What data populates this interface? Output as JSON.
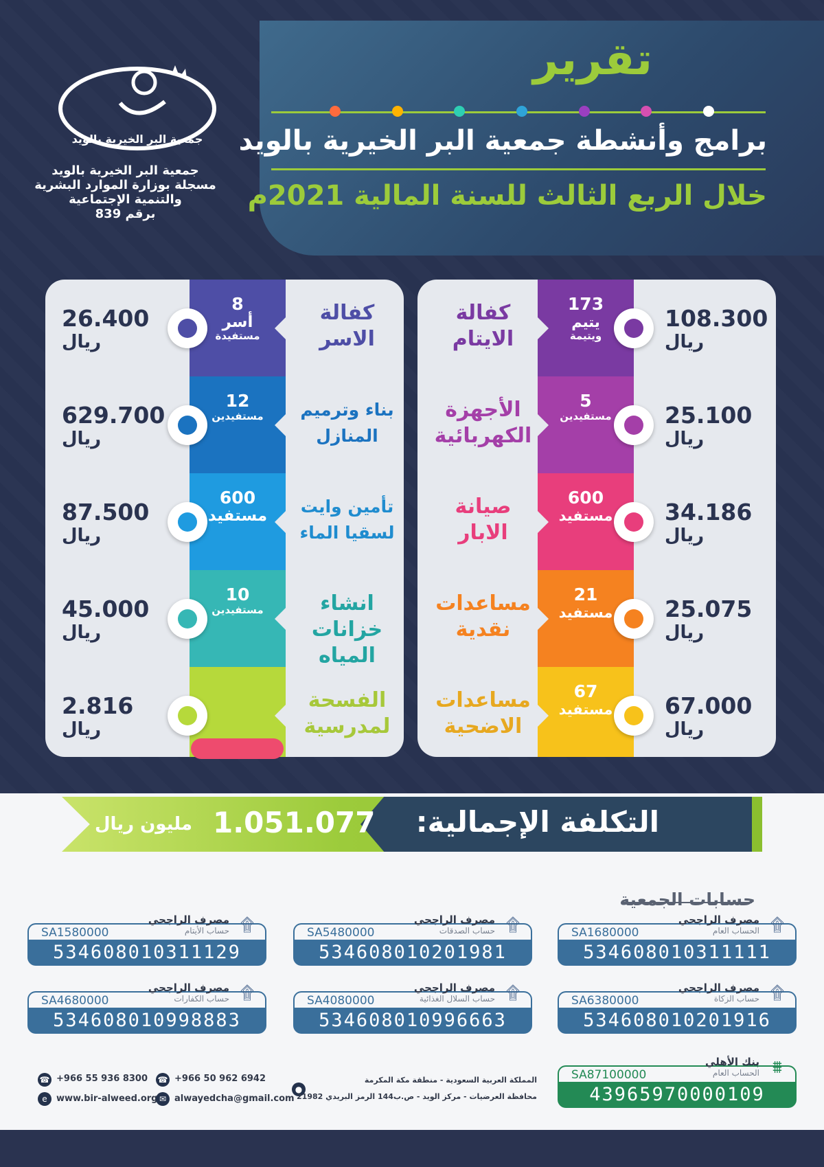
{
  "header": {
    "title": "تقرير",
    "subtitle": "برامج وأنشطة جمعية البر الخيرية بالويد",
    "period": "خلال الربع الثالث للسنة المالية 2021م",
    "dot_colors": [
      "#ff6b3d",
      "#ffb300",
      "#2ecfb3",
      "#2fa4d8",
      "#9b3fc0",
      "#d64fb0",
      "#ffffff"
    ]
  },
  "organization": {
    "logo_text": "جمعية البر الخيرية بالويد",
    "lines": [
      "جمعية البر الخيرية بالويد",
      "مسجلة بوزارة الموارد البشرية",
      "والتنمية الإجتماعية",
      "برقم 839"
    ]
  },
  "programs_right": [
    {
      "label1": "كفالة",
      "label2": "الايتام",
      "count": "173",
      "unit1": "يتيم",
      "unit2": "ويتيمة",
      "amount": "108.300",
      "currency": "ريال",
      "color": "#7a3aa2",
      "label_color": "#7a3aa2"
    },
    {
      "label1": "الأجهزة",
      "label2": "الكهربائية",
      "count": "5",
      "unit1": "",
      "unit2": "مستفيدين",
      "amount": "25.100",
      "currency": "ريال",
      "color": "#a43fa8",
      "label_color": "#a43fa8"
    },
    {
      "label1": "صيانة",
      "label2": "الابار",
      "count": "600",
      "unit1": "مستفيد",
      "unit2": "",
      "amount": "34.186",
      "currency": "ريال",
      "color": "#e83e7c",
      "label_color": "#e83e7c"
    },
    {
      "label1": "مساعدات",
      "label2": "نقدية",
      "count": "21",
      "unit1": "مستفيد",
      "unit2": "",
      "amount": "25.075",
      "currency": "ريال",
      "color": "#f58220",
      "label_color": "#f58220"
    },
    {
      "label1": "مساعدات",
      "label2": "الاضحية",
      "count": "67",
      "unit1": "مستفيد",
      "unit2": "",
      "amount": "67.000",
      "currency": "ريال",
      "color": "#f7c21b",
      "label_color": "#e7a820"
    }
  ],
  "programs_left": [
    {
      "label1": "كفالة",
      "label2": "الاسر",
      "count": "8",
      "unit1": "أسر",
      "unit2": "مستفيدة",
      "amount": "26.400",
      "currency": "ريال",
      "color": "#4e4ea6",
      "label_color": "#4e4ea6"
    },
    {
      "label1": "بناء وترميم",
      "label2": "المنازل",
      "count": "12",
      "unit1": "",
      "unit2": "مستفيدين",
      "amount": "629.700",
      "currency": "ريال",
      "color": "#1b73c0",
      "label_color": "#1b73c0"
    },
    {
      "label1": "تأمين وايت",
      "label2": "لسقيا الماء",
      "count": "600",
      "unit1": "مستفيد",
      "unit2": "",
      "amount": "87.500",
      "currency": "ريال",
      "color": "#1f9be0",
      "label_color": "#1f8ccf"
    },
    {
      "label1": "انشاء",
      "label2": "خزانات المياه",
      "count": "10",
      "unit1": "",
      "unit2": "مستفيدين",
      "amount": "45.000",
      "currency": "ريال",
      "color": "#36b7b5",
      "label_color": "#23a5a2"
    },
    {
      "label1": "الفسحة",
      "label2": "لمدرسية",
      "count": "",
      "unit1": "",
      "unit2": "",
      "amount": "2.816",
      "currency": "ريال",
      "color": "#b6d93b",
      "label_color": "#a7c83a"
    }
  ],
  "total": {
    "label": "التكلفة الإجمالية:",
    "value": "1.051.077",
    "unit": "مليون ريال"
  },
  "accounts": {
    "title": "حسابات الجمعية",
    "items": [
      {
        "bank": "مصرف الراجحي",
        "name": "الحساب العام",
        "short": "SA1680000",
        "number": "534608010311111",
        "variant": "blue"
      },
      {
        "bank": "مصرف الراجحي",
        "name": "حساب الصدقات",
        "short": "SA5480000",
        "number": "534608010201981",
        "variant": "blue"
      },
      {
        "bank": "مصرف الراجحي",
        "name": "حساب الأيتام",
        "short": "SA1580000",
        "number": "534608010311129",
        "variant": "blue"
      },
      {
        "bank": "مصرف الراجحي",
        "name": "حساب الزكاة",
        "short": "SA6380000",
        "number": "534608010201916",
        "variant": "blue"
      },
      {
        "bank": "مصرف الراجحي",
        "name": "حساب السلال الغذائية",
        "short": "SA4080000",
        "number": "534608010996663",
        "variant": "blue"
      },
      {
        "bank": "مصرف الراجحي",
        "name": "حساب الكفارات",
        "short": "SA4680000",
        "number": "534608010998883",
        "variant": "blue"
      },
      {
        "bank": "بنك الأهلي",
        "name": "الحساب العام",
        "short": "SA87100000",
        "number": "43965970000109",
        "variant": "green"
      }
    ]
  },
  "contact": {
    "phone1": "+966 55 936 8300",
    "phone2": "+966 50 962 6942",
    "website": "www.bir-alweed.org",
    "email": "alwayedcha@gmail.com",
    "address1": "المملكة العربية السعودية - منطقة مكة المكرمة",
    "address2": "محافظة العرضيات - مركز الويد - ص.ب144 الرمز البريدي 21982"
  }
}
